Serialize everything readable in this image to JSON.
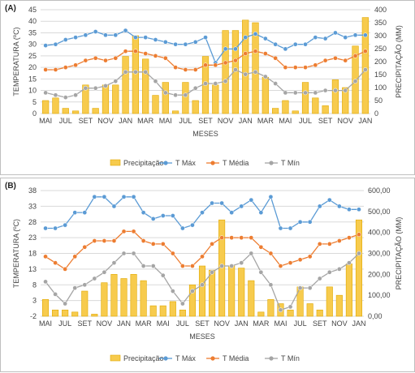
{
  "chart_data": [
    {
      "type": "bar",
      "panel_label": "(A)",
      "categories": [
        "MAI",
        "",
        "JUL",
        "",
        "SET",
        "",
        "NOV",
        "",
        "JAN",
        "",
        "MAR",
        "",
        "MAI",
        "",
        "JUL",
        "",
        "SET",
        "",
        "NOV",
        "",
        "JAN",
        "",
        "MAR",
        "",
        "MAI",
        "",
        "JUL",
        "",
        "SET",
        "",
        "NOV",
        "",
        "JAN"
      ],
      "xlabel": "MESES",
      "ylabel_left": "TEMPERATURA (ºC)",
      "ylabel_right": "PRECIPITAÇÃO (MM)",
      "ylim_left": [
        0,
        45
      ],
      "yticks_left": [
        "0",
        "5",
        "10",
        "15",
        "20",
        "25",
        "30",
        "35",
        "40",
        "45"
      ],
      "ylim_right": [
        0,
        400
      ],
      "yticks_right": [
        "0",
        "50",
        "100",
        "150",
        "200",
        "250",
        "300",
        "350",
        "400"
      ],
      "grid": true,
      "legend_position": "bottom",
      "series": [
        {
          "name": "Precipitação",
          "kind": "bar",
          "axis": "right",
          "color": "#F7CB4D",
          "values": [
            50,
            60,
            20,
            10,
            110,
            20,
            110,
            110,
            220,
            300,
            210,
            70,
            120,
            10,
            120,
            50,
            220,
            110,
            320,
            320,
            360,
            350,
            140,
            20,
            50,
            10,
            120,
            60,
            30,
            130,
            100,
            260,
            370
          ]
        },
        {
          "name": "T Máx",
          "kind": "line",
          "axis": "left",
          "color": "#5B9BD5",
          "values": [
            29.5,
            30,
            32,
            33,
            34,
            35.5,
            34,
            34,
            36,
            33,
            33,
            32,
            31,
            30,
            30,
            31,
            33,
            22,
            28,
            28,
            33,
            34.5,
            32.5,
            30,
            28,
            30,
            30,
            33,
            32.5,
            35,
            33,
            34,
            34
          ]
        },
        {
          "name": "T Média",
          "kind": "line",
          "axis": "left",
          "color": "#ED7D31",
          "values": [
            19,
            19,
            20,
            21,
            23,
            24,
            23,
            24,
            27,
            27,
            26,
            25,
            24,
            20,
            19,
            19,
            21,
            21,
            22,
            23,
            26,
            27,
            26,
            24,
            20,
            20,
            20,
            21,
            23,
            24,
            23,
            25,
            27
          ]
        },
        {
          "name": "T Mín",
          "kind": "line",
          "axis": "left",
          "color": "#A5A5A5",
          "values": [
            9,
            8,
            7,
            8,
            11,
            11,
            12,
            14,
            18,
            18,
            18,
            14,
            9,
            8,
            8,
            11,
            13,
            13,
            14,
            19,
            17,
            18,
            16,
            13,
            9,
            9,
            9,
            9,
            10,
            10,
            10,
            14,
            19
          ]
        }
      ]
    },
    {
      "type": "bar",
      "panel_label": "(B)",
      "categories": [
        "MAI",
        "",
        "JUL",
        "",
        "SET",
        "",
        "NOV",
        "",
        "JAN",
        "",
        "MAR",
        "",
        "MAI",
        "",
        "JUL",
        "",
        "SET",
        "",
        "NOV",
        "",
        "JAN",
        "",
        "MAR",
        "",
        "MAI",
        "",
        "JUL",
        "",
        "SET",
        "",
        "NOV",
        "",
        "JAN"
      ],
      "xlabel": "MESES",
      "ylabel_left": "TEMPERATURA (ºC)",
      "ylabel_right": "PRECIPITAÇÃO (MM)",
      "ylim_left": [
        -2,
        38
      ],
      "yticks_left": [
        "-2",
        "3",
        "8",
        "13",
        "18",
        "23",
        "28",
        "33",
        "38"
      ],
      "ylim_right": [
        0,
        600
      ],
      "yticks_right": [
        "0,00",
        "100,00",
        "200,00",
        "300,00",
        "400,00",
        "500,00",
        "600,00"
      ],
      "grid": true,
      "legend_position": "bottom",
      "series": [
        {
          "name": "Precipitação",
          "kind": "bar",
          "axis": "right",
          "color": "#F7CB4D",
          "values": [
            80,
            30,
            30,
            20,
            120,
            10,
            160,
            200,
            180,
            200,
            170,
            50,
            50,
            70,
            30,
            150,
            240,
            220,
            460,
            240,
            230,
            170,
            20,
            80,
            60,
            30,
            140,
            60,
            30,
            140,
            100,
            250,
            460
          ]
        },
        {
          "name": "T Máx",
          "kind": "line",
          "axis": "left",
          "color": "#5B9BD5",
          "values": [
            26,
            26,
            27,
            31,
            31,
            36,
            36,
            33,
            36,
            36,
            31,
            29,
            30,
            30,
            26,
            27,
            31,
            34,
            34,
            31,
            33,
            35,
            31,
            36,
            26,
            26,
            28,
            28,
            33,
            35,
            33,
            32,
            32
          ]
        },
        {
          "name": "T Média",
          "kind": "line",
          "axis": "left",
          "color": "#ED7D31",
          "values": [
            17,
            15,
            13,
            17,
            20,
            22,
            22,
            22,
            25,
            25,
            22,
            21,
            21,
            18,
            14,
            14,
            17,
            21,
            23,
            23,
            23,
            23,
            20,
            18,
            14,
            15,
            16,
            17,
            21,
            21,
            22,
            23,
            24
          ]
        },
        {
          "name": "T Mín",
          "kind": "line",
          "axis": "left",
          "color": "#A5A5A5",
          "values": [
            9,
            5,
            2,
            7,
            8,
            10,
            12,
            15,
            18,
            18,
            14,
            14,
            11,
            6,
            2,
            6,
            8,
            12,
            14,
            14,
            15,
            18,
            12,
            8,
            0,
            1,
            7,
            7,
            10,
            12,
            13,
            15,
            18
          ]
        }
      ]
    }
  ]
}
